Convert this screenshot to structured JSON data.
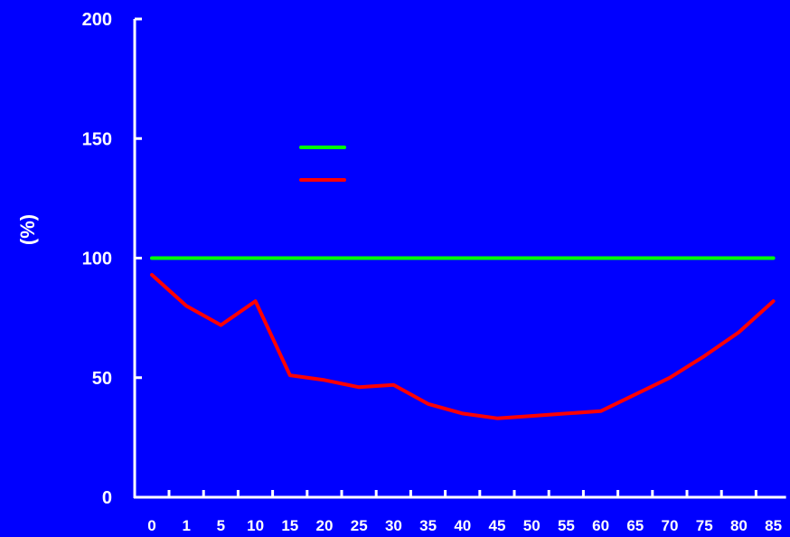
{
  "chart_data": {
    "type": "line",
    "title": "",
    "xlabel": "",
    "ylabel": "(%)",
    "ylim": [
      0,
      200
    ],
    "yticks": [
      0,
      50,
      100,
      150,
      200
    ],
    "categories": [
      "0",
      "1",
      "5",
      "10",
      "15",
      "20",
      "25",
      "30",
      "35",
      "40",
      "45",
      "50",
      "55",
      "60",
      "65",
      "70",
      "75",
      "80",
      "85"
    ],
    "grid": false,
    "legend_position": "top-center",
    "background_color": "#0000ff",
    "axis_color": "#ffffff",
    "series": [
      {
        "color": "#00ff00",
        "values": [
          100,
          100,
          100,
          100,
          100,
          100,
          100,
          100,
          100,
          100,
          100,
          100,
          100,
          100,
          100,
          100,
          100,
          100,
          100
        ]
      },
      {
        "color": "#ff0000",
        "values": [
          93,
          80,
          72,
          82,
          51,
          49,
          46,
          47,
          39,
          35,
          33,
          34,
          35,
          36,
          43,
          50,
          59,
          69,
          82
        ]
      }
    ]
  }
}
